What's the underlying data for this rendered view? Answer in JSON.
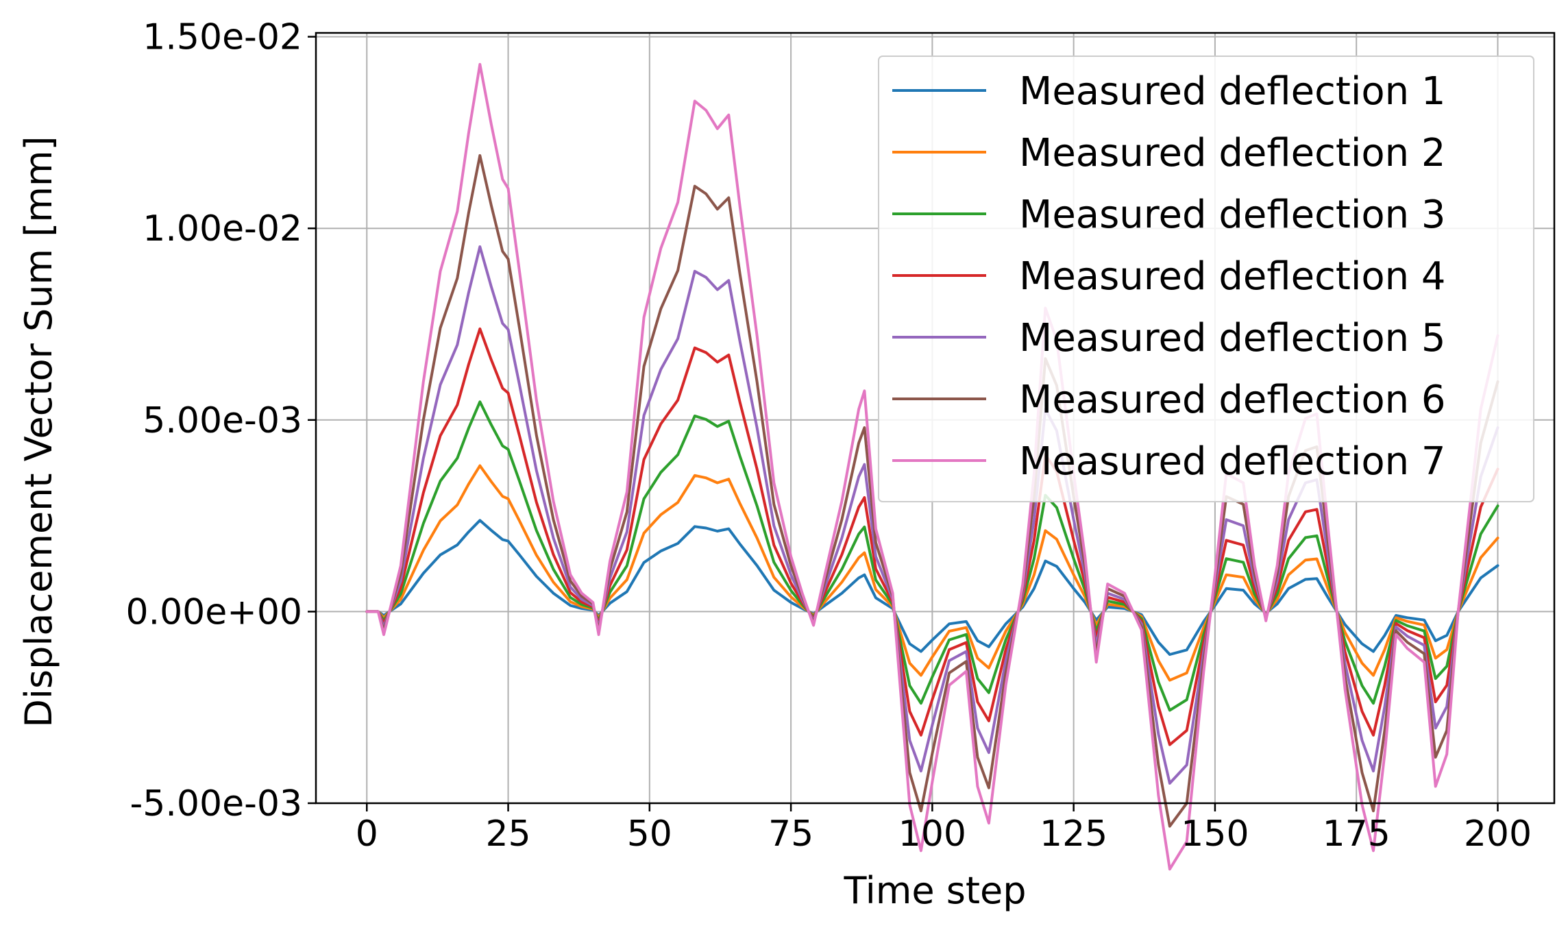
{
  "chart_data": {
    "type": "line",
    "title": "",
    "xlabel": "Time step",
    "ylabel": "Displacement Vector Sum [mm]",
    "xlim": [
      -9,
      210
    ],
    "ylim": [
      -0.005,
      0.0151
    ],
    "xticks": [
      0,
      25,
      50,
      75,
      100,
      125,
      150,
      175,
      200
    ],
    "xtick_labels": [
      "0",
      "25",
      "50",
      "75",
      "100",
      "125",
      "150",
      "175",
      "200"
    ],
    "yticks": [
      -0.005,
      0.0,
      0.005,
      0.01,
      0.015
    ],
    "ytick_labels": [
      "-5.00e-03",
      "0.00e+00",
      "5.00e-03",
      "1.00e-02",
      "1.50e-02"
    ],
    "grid": true,
    "legend_position": "top-right",
    "base_shape": {
      "x": [
        0,
        2,
        3,
        6,
        8,
        10,
        13,
        16,
        18,
        20,
        22,
        24,
        25,
        27,
        30,
        33,
        36,
        38,
        40,
        41,
        43,
        46,
        49,
        52,
        55,
        58,
        60,
        62,
        64,
        66,
        69,
        72,
        75,
        77,
        79,
        81,
        84,
        87,
        88,
        90,
        93,
        96,
        98,
        100,
        103,
        106,
        108,
        110,
        113,
        116,
        118,
        120,
        122,
        125,
        127,
        129,
        131,
        134,
        137,
        140,
        142,
        145,
        148,
        150,
        152,
        155,
        157,
        159,
        161,
        163,
        166,
        168,
        170,
        173,
        176,
        178,
        180,
        182,
        184,
        187,
        189,
        191,
        193,
        195,
        197,
        200
      ],
      "y": [
        0.0,
        0.0,
        -0.25,
        0.5,
        1.5,
        2.5,
        3.7,
        4.35,
        5.2,
        5.95,
        5.3,
        4.7,
        4.6,
        3.7,
        2.3,
        1.2,
        0.4,
        0.2,
        0.1,
        -0.25,
        0.55,
        1.3,
        3.2,
        3.95,
        4.45,
        5.55,
        5.45,
        5.25,
        5.4,
        4.4,
        3.0,
        1.4,
        0.6,
        0.2,
        -0.15,
        0.4,
        1.2,
        2.2,
        2.4,
        0.9,
        0.2,
        -2.1,
        -2.6,
        -1.85,
        -0.8,
        -0.65,
        -1.9,
        -2.3,
        -0.8,
        0.3,
        1.5,
        3.3,
        2.95,
        1.5,
        0.6,
        -0.55,
        0.3,
        0.2,
        -0.2,
        -2.0,
        -2.8,
        -2.5,
        -0.65,
        0.4,
        1.5,
        1.4,
        0.5,
        -0.1,
        0.5,
        1.5,
        2.1,
        2.15,
        0.9,
        -0.85,
        -2.1,
        -2.6,
        -1.55,
        -0.25,
        -0.4,
        -0.55,
        -1.9,
        -1.55,
        0.0,
        1.1,
        2.2,
        3.0
      ],
      "unit_scale": 0.0004
    },
    "series": [
      {
        "name": "Measured deflection 1",
        "color": "#1f77b4",
        "scale": 1
      },
      {
        "name": "Measured deflection 2",
        "color": "#ff7f0e",
        "scale": 1.6
      },
      {
        "name": "Measured deflection 3",
        "color": "#2ca02c",
        "scale": 2.3
      },
      {
        "name": "Measured deflection 4",
        "color": "#d62728",
        "scale": 3.1
      },
      {
        "name": "Measured deflection 5",
        "color": "#9467bd",
        "scale": 4.0
      },
      {
        "name": "Measured deflection 6",
        "color": "#8c564b",
        "scale": 5.0
      },
      {
        "name": "Measured deflection 7",
        "color": "#e377c2",
        "scale": 6.0
      }
    ]
  }
}
